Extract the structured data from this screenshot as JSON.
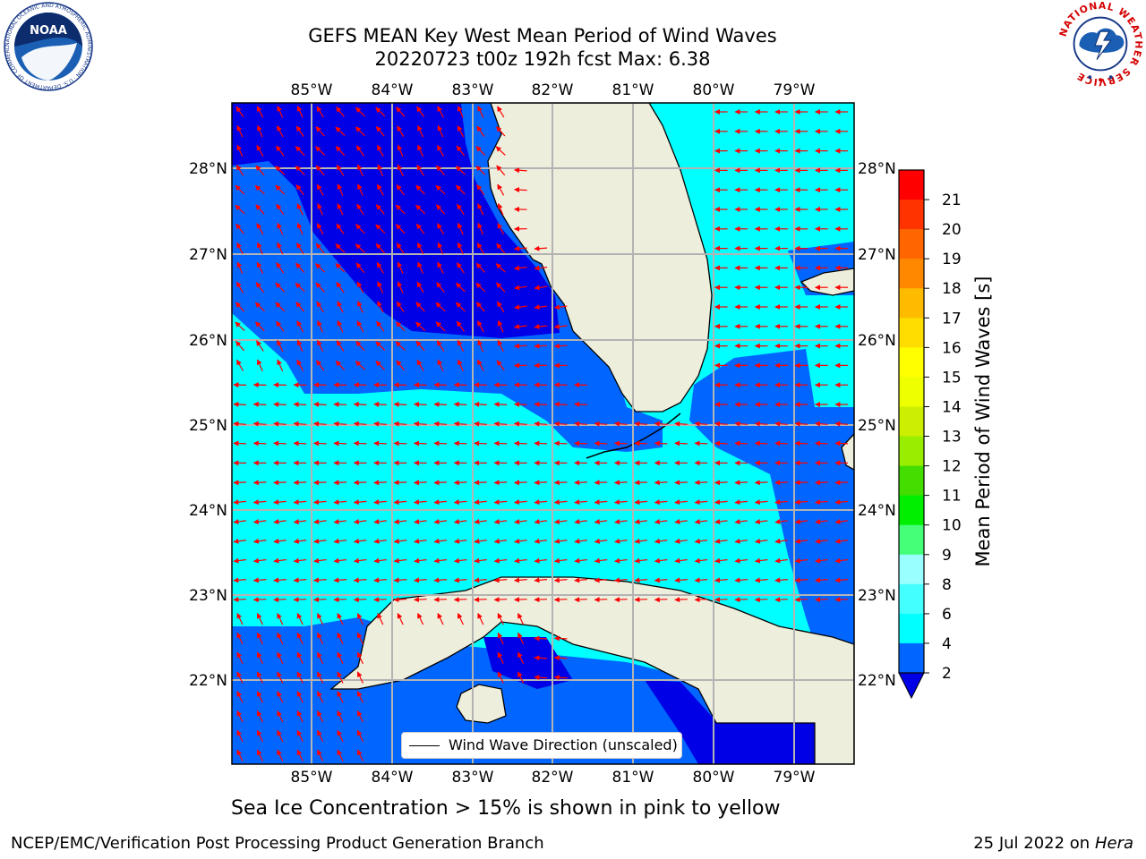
{
  "title": {
    "line1": "GEFS MEAN Key West Mean Period of Wind Waves",
    "line2": "20220723 t00z 192h fcst   Max: 6.38"
  },
  "map": {
    "lon_labels": [
      "85°W",
      "84°W",
      "83°W",
      "82°W",
      "81°W",
      "80°W",
      "79°W"
    ],
    "lat_labels": [
      "28°N",
      "27°N",
      "26°N",
      "25°N",
      "24°N",
      "23°N",
      "22°N"
    ],
    "legend_label": "Wind Wave Direction (unscaled)",
    "colors": {
      "land": "#eeeedd",
      "level_2_4": "#0066ff",
      "level_below_2": "#0000e6",
      "level_4_6": "#00ffff",
      "arrows": "#ff0000",
      "grid": "#b3b3b3"
    }
  },
  "colorbar": {
    "label": "Mean Period of Wind Waves [s]",
    "ticks": [
      "2",
      "4",
      "6",
      "8",
      "9",
      "10",
      "11",
      "12",
      "13",
      "14",
      "15",
      "16",
      "17",
      "18",
      "19",
      "20",
      "21"
    ],
    "colors": [
      "#0066ff",
      "#00ffff",
      "#44ffff",
      "#99ffff",
      "#44ff77",
      "#00ee00",
      "#44dd00",
      "#99ee00",
      "#ccee00",
      "#eeff00",
      "#ffff00",
      "#ffdd00",
      "#ffbb00",
      "#ff8800",
      "#ff6600",
      "#ff3300",
      "#ff0000"
    ],
    "extend_color": "#0000e6"
  },
  "footer": {
    "note": "Sea Ice Concentration > 15% is shown in pink to yellow",
    "credit_left": "NCEP/EMC/Verification Post Processing Product Generation Branch",
    "credit_right_date": "25 Jul 2022 on ",
    "credit_right_machine": "Hera"
  },
  "logos": {
    "noaa": "NOAA",
    "noaa_ring": "NATIONAL OCEANIC AND ATMOSPHERIC ADMINISTRATION · U.S. DEPARTMENT OF COMMERCE",
    "nws_ring": "NATIONAL WEATHER SERVICE"
  }
}
